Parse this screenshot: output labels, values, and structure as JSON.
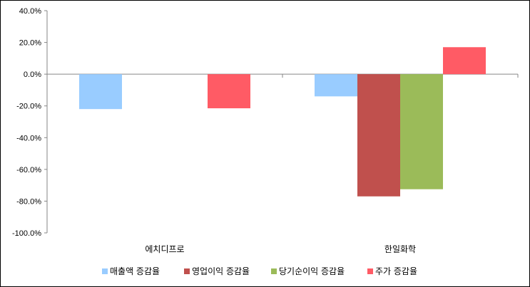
{
  "chart_data": {
    "type": "bar",
    "categories": [
      "에치디프로",
      "한일화학"
    ],
    "series": [
      {
        "name": "매출액 증감율",
        "color": "#99CCFF",
        "values": [
          -22.0,
          -14.0
        ]
      },
      {
        "name": "영업이익 증감율",
        "color": "#C0504D",
        "values": [
          null,
          -77.0
        ]
      },
      {
        "name": "당기순이익 증감율",
        "color": "#9BBB59",
        "values": [
          null,
          -72.5
        ]
      },
      {
        "name": "주가 증감율",
        "color": "#FF5B65",
        "values": [
          -21.5,
          17.0
        ]
      }
    ],
    "ylim": [
      -100,
      40
    ],
    "yticks": [
      40,
      20,
      0,
      -20,
      -40,
      -60,
      -80,
      -100
    ],
    "ytick_labels": [
      "40.0%",
      "20.0%",
      "0.0%",
      "-20.0%",
      "-40.0%",
      "-60.0%",
      "-80.0%",
      "-100.0%"
    ],
    "grid": false,
    "legend_position": "bottom"
  }
}
